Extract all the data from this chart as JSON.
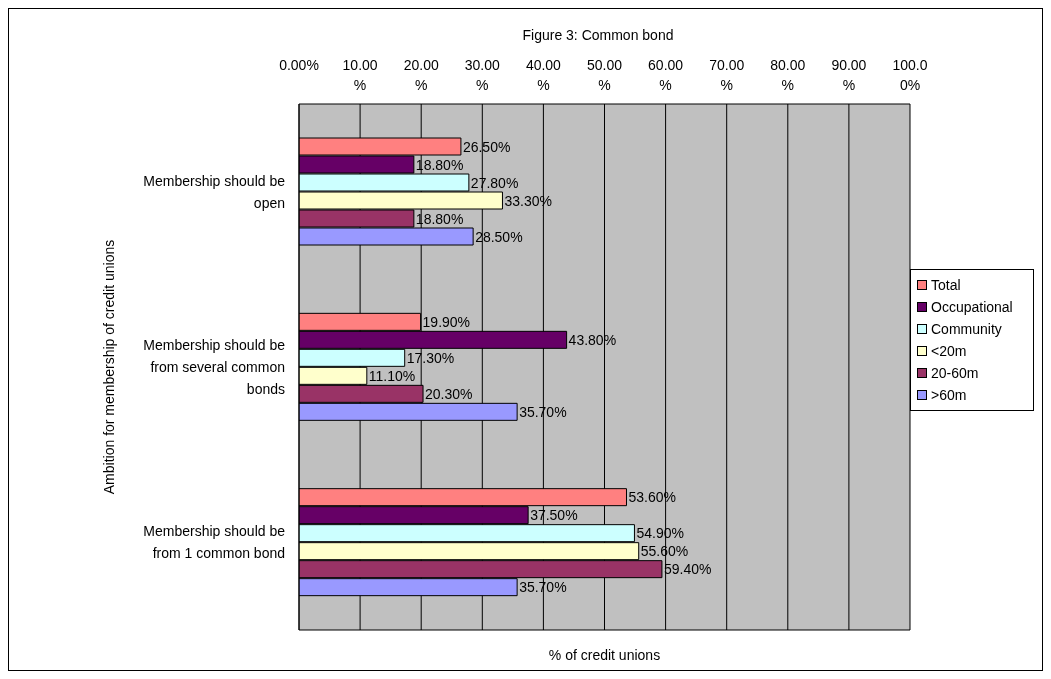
{
  "chart_data": {
    "type": "bar",
    "orientation": "horizontal",
    "title": "Figure 3: Common bond",
    "xlabel": "% of credit unions",
    "ylabel": "Ambition for membership of credit unions",
    "categories": [
      "Membership should be open",
      "Membership should be from several common bonds",
      "Membership should be from 1 common bond"
    ],
    "series": [
      {
        "name": "Total",
        "color": "#ff8080",
        "values": [
          26.5,
          19.9,
          53.6
        ],
        "value_labels": [
          "26.50%",
          "19.90%",
          "53.60%"
        ]
      },
      {
        "name": "Occupational",
        "color": "#660066",
        "values": [
          18.8,
          43.8,
          37.5
        ],
        "value_labels": [
          "18.80%",
          "43.80%",
          "37.50%"
        ]
      },
      {
        "name": "Community",
        "color": "#ccffff",
        "values": [
          27.8,
          17.3,
          54.9
        ],
        "value_labels": [
          "27.80%",
          "17.30%",
          "54.90%"
        ]
      },
      {
        "name": "<20m",
        "color": "#ffffcc",
        "values": [
          33.3,
          11.1,
          55.6
        ],
        "value_labels": [
          "33.30%",
          "11.10%",
          "55.60%"
        ]
      },
      {
        "name": "20-60m",
        "color": "#993366",
        "values": [
          18.8,
          20.3,
          59.4
        ],
        "value_labels": [
          "18.80%",
          "20.30%",
          "59.40%"
        ]
      },
      {
        "name": ">60m",
        "color": "#9999ff",
        "values": [
          28.5,
          35.7,
          35.7
        ],
        "value_labels": [
          "28.50%",
          "35.70%",
          "35.70%"
        ]
      }
    ],
    "xlim": [
      0,
      100
    ],
    "xticks": [
      {
        "value": 0,
        "label": "0.00%"
      },
      {
        "value": 10,
        "label": "10.00%"
      },
      {
        "value": 20,
        "label": "20.00%"
      },
      {
        "value": 30,
        "label": "30.00%"
      },
      {
        "value": 40,
        "label": "40.00%"
      },
      {
        "value": 50,
        "label": "50.00%"
      },
      {
        "value": 60,
        "label": "60.00%"
      },
      {
        "value": 70,
        "label": "70.00%"
      },
      {
        "value": 80,
        "label": "80.00%"
      },
      {
        "value": 90,
        "label": "90.00%"
      },
      {
        "value": 100,
        "label": "100.00%"
      }
    ],
    "grid": "x",
    "legend": "right"
  }
}
